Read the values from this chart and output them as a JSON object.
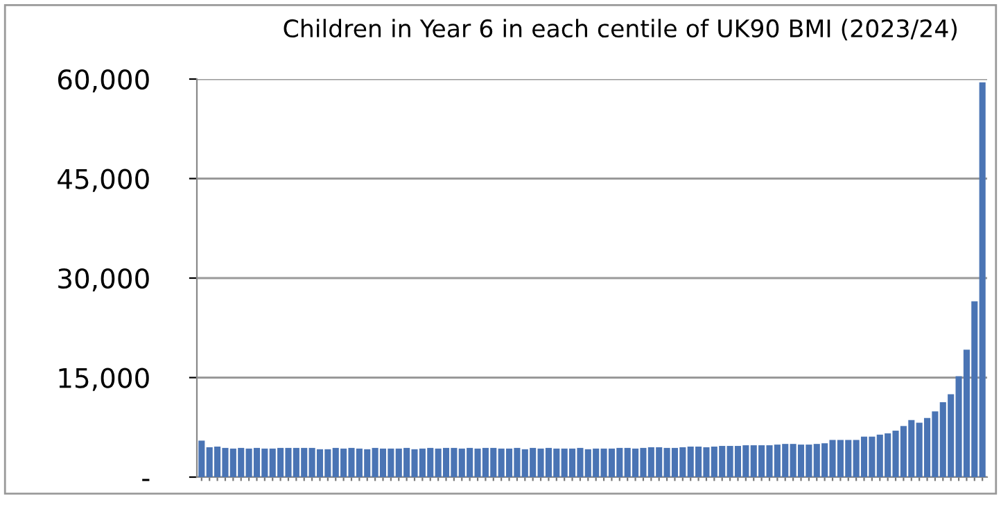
{
  "chart_data": {
    "type": "bar",
    "title": "Children in Year 6 in each centile of UK90 BMI (2023/24)",
    "categories": [
      null,
      null,
      null,
      null,
      null,
      null,
      null,
      null,
      null,
      null,
      null,
      null,
      null,
      null,
      null,
      null,
      null,
      null,
      null,
      null,
      null,
      null,
      null,
      null,
      null,
      null,
      null,
      null,
      null,
      null,
      null,
      null,
      null,
      null,
      null,
      null,
      null,
      null,
      null,
      null,
      null,
      null,
      null,
      null,
      null,
      null,
      null,
      null,
      null,
      null,
      null,
      null,
      null,
      null,
      null,
      null,
      null,
      null,
      null,
      null,
      null,
      null,
      null,
      null,
      null,
      null,
      null,
      null,
      null,
      null,
      null,
      null,
      null,
      null,
      null,
      null,
      null,
      null,
      null,
      null,
      null,
      null,
      null,
      null,
      null,
      null,
      null,
      null,
      null,
      null,
      null,
      null,
      null,
      null,
      null,
      null,
      null,
      null,
      null,
      null
    ],
    "values": [
      5500,
      4500,
      4600,
      4400,
      4300,
      4400,
      4300,
      4400,
      4300,
      4300,
      4400,
      4400,
      4400,
      4400,
      4400,
      4200,
      4200,
      4400,
      4300,
      4400,
      4300,
      4200,
      4400,
      4300,
      4300,
      4300,
      4400,
      4200,
      4300,
      4400,
      4300,
      4400,
      4400,
      4300,
      4400,
      4300,
      4400,
      4400,
      4300,
      4300,
      4400,
      4200,
      4400,
      4300,
      4400,
      4300,
      4300,
      4300,
      4400,
      4200,
      4300,
      4300,
      4300,
      4400,
      4400,
      4300,
      4400,
      4500,
      4500,
      4400,
      4400,
      4500,
      4600,
      4600,
      4500,
      4600,
      4700,
      4700,
      4700,
      4800,
      4800,
      4800,
      4800,
      4900,
      5000,
      5000,
      4900,
      4900,
      5000,
      5100,
      5600,
      5600,
      5600,
      5600,
      6100,
      6100,
      6400,
      6600,
      7000,
      7700,
      8600,
      8200,
      8900,
      9900,
      11300,
      12500,
      15200,
      19200,
      26500,
      59500
    ],
    "color": "#4a74b4",
    "ylim": [
      0,
      60000
    ],
    "yticks": [
      {
        "value": 0,
        "label": "-"
      },
      {
        "value": 15000,
        "label": "15,000"
      },
      {
        "value": 30000,
        "label": "30,000"
      },
      {
        "value": 45000,
        "label": "45,000"
      },
      {
        "value": 60000,
        "label": "60,000"
      }
    ],
    "grid": "y"
  }
}
